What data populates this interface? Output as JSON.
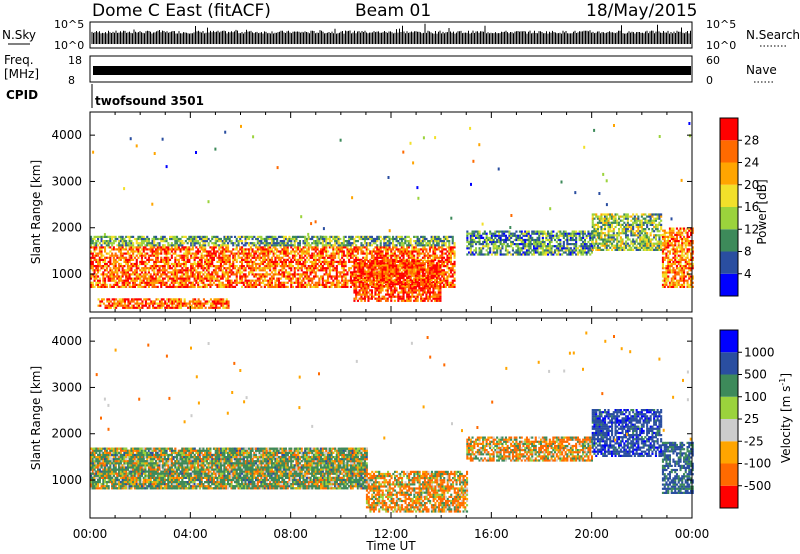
{
  "header": {
    "title": "Dome C East (fitACF)",
    "beam": "Beam 01",
    "date": "18/May/2015"
  },
  "nsky_panel": {
    "left_label": "N.Sky",
    "right_label": "N.Search",
    "left_ticks": [
      "10^5",
      "10^0"
    ],
    "right_ticks": [
      "10^5",
      "10^0"
    ],
    "level": 0.3
  },
  "freq_panel": {
    "left_label_1": "Freq.",
    "left_label_2": "[MHz]",
    "right_label": "Nave",
    "left_ticks": [
      "18",
      "8"
    ],
    "right_ticks": [
      "60",
      "0"
    ],
    "level": 0.45
  },
  "cpid": {
    "label": "CPID",
    "value": "twofsound 3501"
  },
  "x_axis": {
    "label": "Time UT",
    "ticks": [
      "00:00",
      "04:00",
      "08:00",
      "12:00",
      "16:00",
      "20:00",
      "00:00"
    ],
    "range_hours": [
      0,
      24
    ]
  },
  "y_axis": {
    "label": "Slant Range [km]",
    "ticks": [
      "1000",
      "2000",
      "3000",
      "4000"
    ],
    "range_km": [
      180,
      4500
    ]
  },
  "colors": {
    "power_scale": [
      "#0000ff",
      "#2a4ea0",
      "#3d8a5a",
      "#9bd33c",
      "#f2e02a",
      "#ffa500",
      "#ff6a00",
      "#ff0000"
    ],
    "velocity_scale": [
      "#ff0000",
      "#ff6a00",
      "#ffa500",
      "#cccccc",
      "#9bd33c",
      "#3d8a5a",
      "#2a4ea0",
      "#0000ff"
    ]
  },
  "power_colorbar": {
    "label": "Power [dB]",
    "ticks": [
      "4",
      "8",
      "12",
      "16",
      "20",
      "24",
      "28"
    ]
  },
  "velocity_colorbar": {
    "label_main": "Velocity",
    "label_unit": "[m s",
    "label_exp": "-1",
    "label_close": "]",
    "ticks": [
      "-1000",
      "-500",
      "-100",
      "-25",
      "25",
      "100",
      "500",
      "1000"
    ]
  },
  "chart_data": [
    {
      "type": "heatmap",
      "quantity": "power",
      "units": "dB",
      "x_range_hours": [
        0,
        24
      ],
      "y_range_km": [
        180,
        4500
      ],
      "color_range": [
        0,
        32
      ],
      "regions": [
        {
          "t0": 0.0,
          "t1": 14.5,
          "r0": 700,
          "r1": 1600,
          "value": 26
        },
        {
          "t0": 0.0,
          "t1": 14.5,
          "r0": 1600,
          "r1": 1800,
          "value": 12
        },
        {
          "t0": 0.3,
          "t1": 5.5,
          "r0": 250,
          "r1": 450,
          "value": 26
        },
        {
          "t0": 10.5,
          "t1": 14.0,
          "r0": 400,
          "r1": 1300,
          "value": 28
        },
        {
          "t0": 15.0,
          "t1": 20.0,
          "r0": 1400,
          "r1": 1900,
          "value": 10
        },
        {
          "t0": 20.0,
          "t1": 22.8,
          "r0": 1500,
          "r1": 2300,
          "value": 14
        },
        {
          "t0": 22.8,
          "t1": 24.0,
          "r0": 700,
          "r1": 2000,
          "value": 24
        }
      ]
    },
    {
      "type": "heatmap",
      "quantity": "velocity",
      "units": "m s^-1",
      "x_range_hours": [
        0,
        24
      ],
      "y_range_km": [
        180,
        4500
      ],
      "regions": [
        {
          "t0": 0.0,
          "t1": 11.0,
          "r0": 800,
          "r1": 1700,
          "value": -150
        },
        {
          "t0": 0.0,
          "t1": 11.0,
          "r0": 800,
          "r1": 1700,
          "value": 200
        },
        {
          "t0": 11.0,
          "t1": 15.0,
          "r0": 300,
          "r1": 1200,
          "value": -120
        },
        {
          "t0": 15.0,
          "t1": 20.0,
          "r0": 1400,
          "r1": 1900,
          "value": -100
        },
        {
          "t0": 20.0,
          "t1": 22.8,
          "r0": 1500,
          "r1": 2500,
          "value": 800
        },
        {
          "t0": 22.8,
          "t1": 24.0,
          "r0": 700,
          "r1": 1800,
          "value": 600
        }
      ]
    }
  ]
}
